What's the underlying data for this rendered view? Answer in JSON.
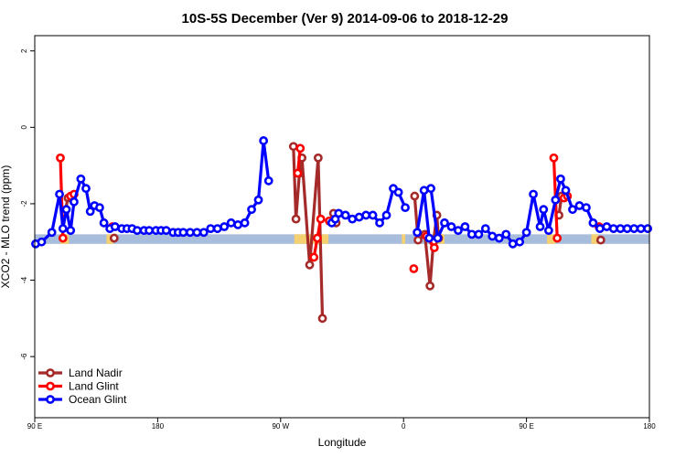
{
  "chart_data": {
    "type": "line",
    "title": "10S-5S December (Ver 9)   2014-09-06 to 2018-12-29",
    "xlabel": "Longitude",
    "ylabel": "XCO2 - MLO trend (ppm)",
    "xlim": [
      90,
      450
    ],
    "ylim": [
      -7.6,
      2.4
    ],
    "x_ticks": [
      {
        "value": 90,
        "label": "90 E"
      },
      {
        "value": 162,
        "label": "180"
      },
      {
        "value": 234,
        "label": "90 W"
      },
      {
        "value": 306,
        "label": "0"
      },
      {
        "value": 378,
        "label": "90 E"
      },
      {
        "value": 450,
        "label": "180"
      }
    ],
    "y_ticks": [
      {
        "value": 2,
        "label": "2"
      },
      {
        "value": 0,
        "label": "0"
      },
      {
        "value": -2,
        "label": "-2"
      },
      {
        "value": -4,
        "label": "-4"
      },
      {
        "value": -6,
        "label": "-6"
      }
    ],
    "legend_position": "bottom-left",
    "band": {
      "y_range": [
        -3.05,
        -2.8
      ],
      "ocean_color": "#a8bcdc",
      "land_color": "#f4d070",
      "land_ranges": [
        [
          105,
          110
        ],
        [
          132,
          136
        ],
        [
          242,
          262
        ],
        [
          305,
          307
        ],
        [
          324,
          330
        ],
        [
          390,
          395
        ],
        [
          416,
          420
        ]
      ]
    },
    "series": [
      {
        "name": "Land Nadir",
        "color": "#a52a2a",
        "segments": [
          [
            [
              107.5,
              -2.25
            ],
            [
              109.5,
              -1.85
            ],
            [
              111.5,
              -1.85
            ]
          ],
          [
            [
              136.5,
              -2.9
            ]
          ],
          [
            [
              241.5,
              -0.5
            ],
            [
              243,
              -2.4
            ],
            [
              245,
              -1.2
            ],
            [
              246.5,
              -0.8
            ],
            [
              251,
              -3.6
            ],
            [
              256,
              -0.8
            ],
            [
              258.5,
              -5.0
            ]
          ],
          [
            [
              265,
              -2.25
            ],
            [
              266.5,
              -2.5
            ]
          ],
          [
            [
              312.5,
              -1.8
            ],
            [
              314.5,
              -2.95
            ],
            [
              318.5,
              -2.8
            ],
            [
              321.5,
              -4.15
            ],
            [
              323.5,
              -3.0
            ],
            [
              325.5,
              -2.3
            ],
            [
              326.5,
              -2.9
            ]
          ],
          [
            [
              397,
              -2.3
            ],
            [
              398.5,
              -1.8
            ]
          ],
          [
            [
              421.5,
              -2.95
            ]
          ]
        ]
      },
      {
        "name": "Land Glint",
        "color": "#ff0000",
        "segments": [
          [
            [
              105,
              -0.8
            ],
            [
              106.5,
              -2.9
            ]
          ],
          [
            [
              111,
              -1.8
            ],
            [
              113,
              -1.75
            ]
          ],
          [
            [
              135.5,
              -2.6
            ]
          ],
          [
            [
              244,
              -1.2
            ],
            [
              245.5,
              -0.55
            ]
          ],
          [
            [
              253.5,
              -3.4
            ],
            [
              255.5,
              -2.9
            ],
            [
              257.5,
              -2.4
            ]
          ],
          [
            [
              262.5,
              -2.45
            ]
          ],
          [
            [
              312,
              -3.7
            ]
          ],
          [
            [
              319.5,
              -2.85
            ],
            [
              324,
              -3.15
            ]
          ],
          [
            [
              394,
              -0.8
            ],
            [
              396,
              -2.9
            ]
          ],
          [
            [
              400,
              -1.85
            ],
            [
              402,
              -1.8
            ]
          ],
          [
            [
              420.5,
              -2.6
            ]
          ]
        ]
      },
      {
        "name": "Ocean Glint",
        "color": "#0000ff",
        "segments": [
          [
            [
              90.5,
              -3.05
            ],
            [
              94,
              -3.0
            ],
            [
              100,
              -2.75
            ],
            [
              104.5,
              -1.75
            ],
            [
              106.5,
              -2.65
            ],
            [
              108.5,
              -2.15
            ],
            [
              111,
              -2.7
            ],
            [
              113,
              -1.95
            ],
            [
              117,
              -1.35
            ],
            [
              120,
              -1.6
            ],
            [
              122.5,
              -2.2
            ],
            [
              125,
              -2.05
            ],
            [
              128,
              -2.1
            ],
            [
              130.5,
              -2.5
            ],
            [
              134,
              -2.65
            ],
            [
              137,
              -2.6
            ],
            [
              141,
              -2.65
            ],
            [
              144,
              -2.65
            ],
            [
              147,
              -2.65
            ],
            [
              150,
              -2.7
            ],
            [
              154,
              -2.7
            ],
            [
              157,
              -2.7
            ],
            [
              161,
              -2.7
            ],
            [
              164,
              -2.7
            ],
            [
              167,
              -2.7
            ],
            [
              171,
              -2.75
            ],
            [
              174,
              -2.75
            ],
            [
              177,
              -2.75
            ],
            [
              181,
              -2.75
            ],
            [
              185,
              -2.75
            ],
            [
              189,
              -2.75
            ],
            [
              193,
              -2.65
            ],
            [
              197,
              -2.65
            ],
            [
              201,
              -2.6
            ],
            [
              205,
              -2.5
            ],
            [
              209,
              -2.55
            ],
            [
              213,
              -2.5
            ],
            [
              217,
              -2.15
            ],
            [
              221,
              -1.9
            ],
            [
              224,
              -0.35
            ],
            [
              227,
              -1.4
            ]
          ],
          [
            [
              264,
              -2.5
            ],
            [
              266,
              -2.4
            ],
            [
              268,
              -2.25
            ],
            [
              272,
              -2.3
            ],
            [
              276,
              -2.4
            ],
            [
              280,
              -2.35
            ],
            [
              284,
              -2.3
            ],
            [
              288,
              -2.3
            ],
            [
              292,
              -2.5
            ],
            [
              296,
              -2.3
            ],
            [
              300,
              -1.6
            ],
            [
              303,
              -1.7
            ],
            [
              307,
              -2.1
            ]
          ],
          [
            [
              314,
              -2.75
            ],
            [
              318,
              -1.65
            ],
            [
              321,
              -2.9
            ]
          ],
          [
            [
              322,
              -1.6
            ],
            [
              326,
              -2.9
            ],
            [
              330,
              -2.5
            ],
            [
              334,
              -2.6
            ],
            [
              338,
              -2.7
            ],
            [
              342,
              -2.6
            ],
            [
              346,
              -2.8
            ],
            [
              350,
              -2.8
            ],
            [
              354,
              -2.65
            ],
            [
              358,
              -2.85
            ],
            [
              362,
              -2.9
            ],
            [
              366,
              -2.8
            ],
            [
              370,
              -3.05
            ],
            [
              374,
              -3.0
            ],
            [
              378,
              -2.75
            ],
            [
              382,
              -1.75
            ],
            [
              386,
              -2.6
            ],
            [
              388,
              -2.15
            ],
            [
              391,
              -2.7
            ],
            [
              395,
              -1.9
            ],
            [
              398,
              -1.35
            ],
            [
              401,
              -1.65
            ],
            [
              405,
              -2.15
            ],
            [
              409,
              -2.05
            ],
            [
              413,
              -2.1
            ],
            [
              417,
              -2.5
            ],
            [
              421,
              -2.65
            ],
            [
              425,
              -2.6
            ],
            [
              429,
              -2.65
            ],
            [
              433,
              -2.65
            ],
            [
              437,
              -2.65
            ],
            [
              441,
              -2.65
            ],
            [
              445,
              -2.65
            ],
            [
              449,
              -2.65
            ]
          ]
        ]
      }
    ]
  }
}
